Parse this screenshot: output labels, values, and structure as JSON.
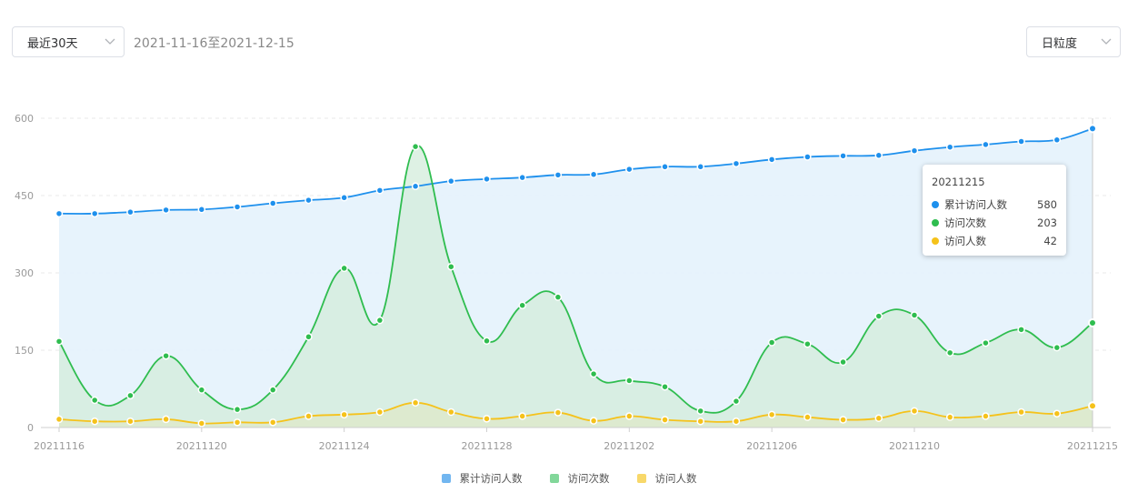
{
  "controls": {
    "range_label": "最近30天",
    "date_range": "2021-11-16至2021-12-15",
    "granularity_label": "日粒度"
  },
  "colors": {
    "visitors_total": "#1e90ed",
    "visits": "#2fbd4f",
    "visitors": "#f5c21b"
  },
  "tooltip": {
    "title": "20211215",
    "rows": [
      {
        "name": "累计访问人数",
        "value": "580",
        "color": "#1e90ed"
      },
      {
        "name": "访问次数",
        "value": "203",
        "color": "#2fbd4f"
      },
      {
        "name": "访问人数",
        "value": "42",
        "color": "#f5c21b"
      }
    ]
  },
  "chart_data": {
    "type": "area",
    "title": "",
    "xlabel": "",
    "ylabel": "",
    "ylim": [
      0,
      600
    ],
    "yticks": [
      0,
      150,
      300,
      450,
      600
    ],
    "grid": true,
    "legend_position": "bottom-center",
    "x": [
      "20211116",
      "20211117",
      "20211118",
      "20211119",
      "20211120",
      "20211121",
      "20211122",
      "20211123",
      "20211124",
      "20211125",
      "20211126",
      "20211127",
      "20211128",
      "20211129",
      "20211130",
      "20211201",
      "20211202",
      "20211203",
      "20211204",
      "20211205",
      "20211206",
      "20211207",
      "20211208",
      "20211209",
      "20211210",
      "20211211",
      "20211212",
      "20211213",
      "20211214",
      "20211215"
    ],
    "x_tick_labels": [
      "20211116",
      "20211120",
      "20211124",
      "20211128",
      "20211202",
      "20211206",
      "20211210",
      "20211215"
    ],
    "series": [
      {
        "name": "累计访问人数",
        "color": "#1e90ed",
        "fill": "#e6f2fc",
        "values": [
          415,
          415,
          418,
          422,
          423,
          428,
          435,
          441,
          446,
          460,
          468,
          478,
          482,
          485,
          490,
          491,
          501,
          506,
          506,
          512,
          520,
          525,
          527,
          528,
          537,
          544,
          549,
          555,
          558,
          580
        ]
      },
      {
        "name": "访问次数",
        "color": "#2fbd4f",
        "fill": "#d3ecdb",
        "values": [
          167,
          53,
          62,
          139,
          73,
          35,
          73,
          176,
          309,
          208,
          545,
          312,
          168,
          237,
          253,
          104,
          91,
          79,
          32,
          51,
          165,
          162,
          127,
          216,
          218,
          145,
          164,
          190,
          155,
          203
        ]
      },
      {
        "name": "访问人数",
        "color": "#f5c21b",
        "fill": "#dfe8c8",
        "values": [
          16,
          12,
          12,
          16,
          8,
          10,
          10,
          22,
          25,
          30,
          48,
          30,
          17,
          22,
          29,
          13,
          22,
          15,
          12,
          12,
          25,
          20,
          15,
          18,
          32,
          20,
          22,
          30,
          27,
          42
        ]
      }
    ]
  },
  "legend": [
    {
      "name": "累计访问人数",
      "color": "#72b6f0"
    },
    {
      "name": "访问次数",
      "color": "#82d79a"
    },
    {
      "name": "访问人数",
      "color": "#f8d86a"
    }
  ]
}
